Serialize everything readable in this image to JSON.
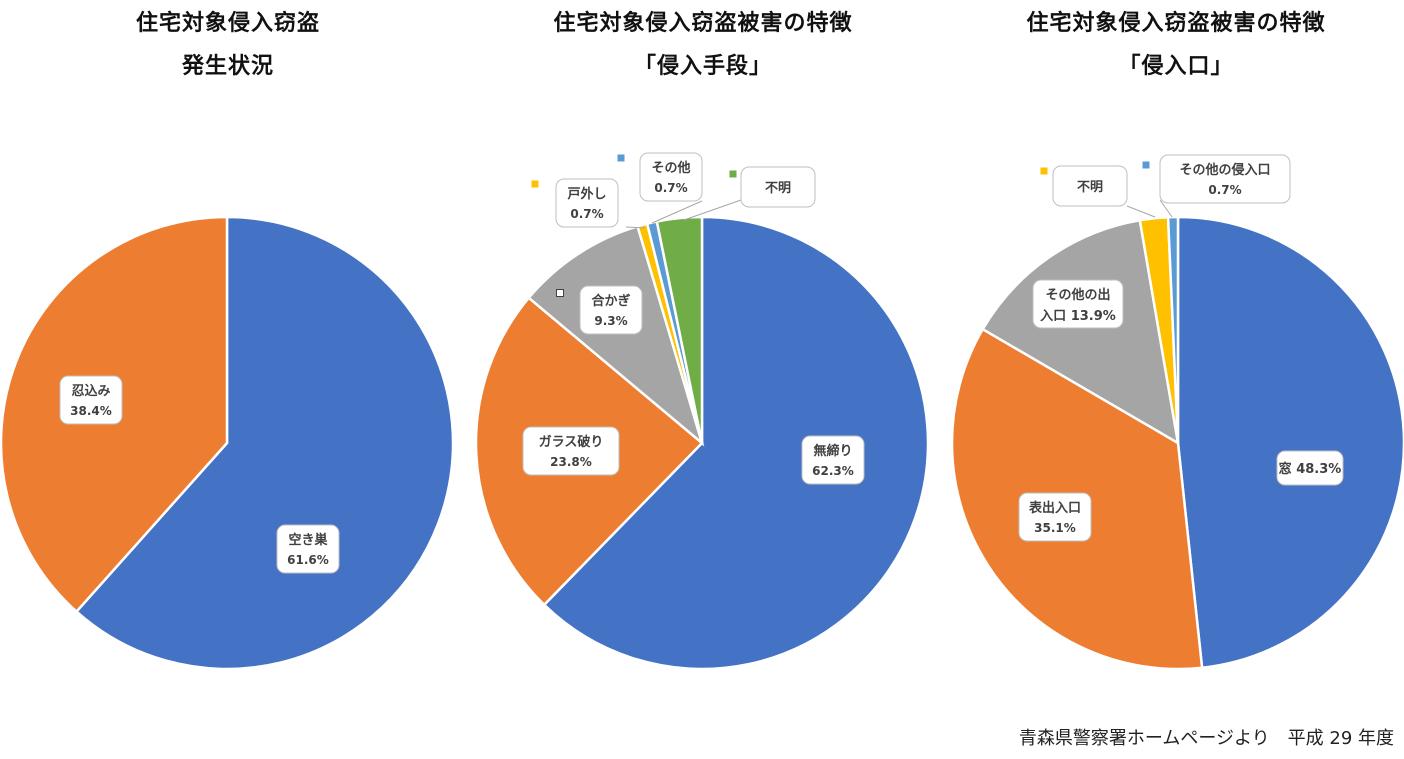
{
  "source_note": "青森県警察署ホームページより　平成 29 年度",
  "chart_data": [
    {
      "type": "pie",
      "title": [
        "住宅対象侵入窃盗",
        "発生状況"
      ],
      "slices": [
        {
          "label": "空き巣",
          "value_text": "61.6%",
          "value": 61.6,
          "color": "#4472c4"
        },
        {
          "label": "忍込み",
          "value_text": "38.4%",
          "value": 38.4,
          "color": "#ed7d31"
        }
      ]
    },
    {
      "type": "pie",
      "title": [
        "住宅対象侵入窃盗被害の特徴",
        "「侵入手段」"
      ],
      "slices": [
        {
          "label": "無締り",
          "value_text": "62.3%",
          "value": 62.3,
          "color": "#4472c4"
        },
        {
          "label": "ガラス破り",
          "value_text": "23.8%",
          "value": 23.8,
          "color": "#ed7d31"
        },
        {
          "label": "合かぎ",
          "value_text": "9.3%",
          "value": 9.3,
          "color": "#a5a5a5"
        },
        {
          "label": "戸外し",
          "value_text": "0.7%",
          "value": 0.7,
          "color": "#ffc000"
        },
        {
          "label": "その他",
          "value_text": "0.7%",
          "value": 0.7,
          "color": "#5b9bd5"
        },
        {
          "label": "不明",
          "value_text": "",
          "value": 3.2,
          "color": "#70ad47"
        }
      ]
    },
    {
      "type": "pie",
      "title": [
        "住宅対象侵入窃盗被害の特徴",
        "「侵入口」"
      ],
      "slices": [
        {
          "label": "窓",
          "value_text": "48.3%",
          "value": 48.3,
          "color": "#4472c4"
        },
        {
          "label": "表出入口",
          "value_text": "35.1%",
          "value": 35.1,
          "color": "#ed7d31"
        },
        {
          "label": "その他の出入口",
          "value_text": "13.9%",
          "value": 13.9,
          "color": "#a5a5a5"
        },
        {
          "label": "不明",
          "value_text": "",
          "value": 2.0,
          "color": "#ffc000"
        },
        {
          "label": "その他の侵入口",
          "value_text": "0.7%",
          "value": 0.7,
          "color": "#5b9bd5"
        }
      ]
    }
  ]
}
